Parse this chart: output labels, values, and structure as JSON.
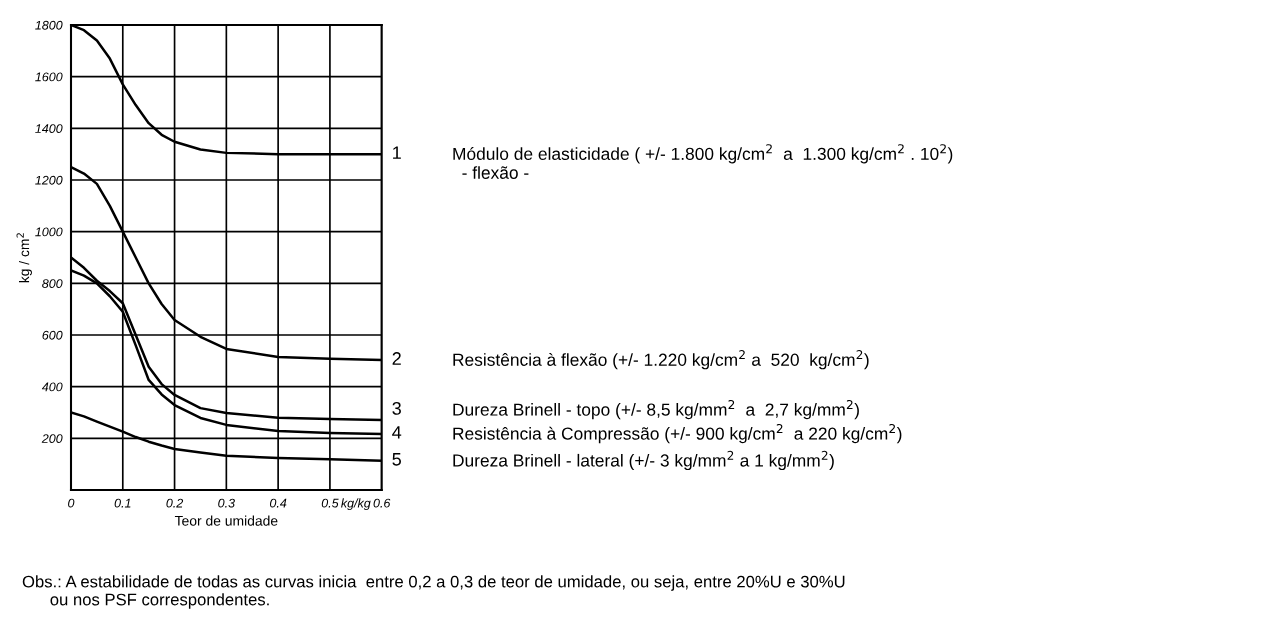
{
  "chart_data": {
    "type": "line",
    "xlabel": "Teor de umidade",
    "ylabel": "kg / cm$^{2}$",
    "x": [
      0,
      0.025,
      0.05,
      0.075,
      0.1,
      0.125,
      0.15,
      0.175,
      0.2,
      0.25,
      0.3,
      0.4,
      0.5,
      0.6
    ],
    "series": [
      {
        "name": "1",
        "color": "#000000",
        "values": [
          1800,
          1780,
          1740,
          1670,
          1570,
          1490,
          1420,
          1375,
          1348,
          1318,
          1305,
          1300,
          1300,
          1300
        ]
      },
      {
        "name": "2",
        "color": "#000000",
        "values": [
          1250,
          1225,
          1185,
          1100,
          1000,
          900,
          800,
          720,
          658,
          593,
          546,
          515,
          508,
          503
        ]
      },
      {
        "name": "3",
        "color": "#000000",
        "values": [
          900,
          860,
          810,
          770,
          723,
          600,
          477,
          410,
          368,
          317,
          298,
          280,
          275,
          271
        ]
      },
      {
        "name": "4",
        "color": "#000000",
        "values": [
          850,
          830,
          800,
          750,
          690,
          560,
          426,
          370,
          329,
          279,
          252,
          228,
          221,
          217
        ]
      },
      {
        "name": "5",
        "color": "#000000",
        "values": [
          300,
          285,
          265,
          245,
          226,
          205,
          187,
          172,
          159,
          145,
          133,
          124,
          119,
          113
        ]
      }
    ],
    "xlim": [
      0,
      0.6
    ],
    "ylim": [
      0,
      1800
    ],
    "xticks": [
      0,
      0.1,
      0.2,
      0.3,
      0.4,
      0.5,
      0.6
    ],
    "yticks": [
      {
        "value": 0,
        "label": null
      },
      200,
      400,
      600,
      800,
      1000,
      1200,
      1400,
      1600,
      1800
    ],
    "grid": true,
    "legend": false,
    "marker": "none",
    "line_style": "solid",
    "annotations": [
      "Módulo de elasticidade ( +/- 1.800 kg/cm$^{2}$  a  1.300 kg/cm$^{2}$ . 10$^{2}$)\n  - flexão -",
      "Resistência à flexão (+/- 1.220 kg/cm$^{2}$ a  520  kg/cm$^{2}$)",
      "Dureza Brinell - topo (+/- 8,5 kg/mm$^{2}$  a  2,7 kg/mm$^{2}$)",
      "Resistência à Compressão (+/- 900 kg/cm$^{2}$  a 220 kg/cm$^{2}$)",
      "Dureza Brinell - lateral (+/- 3 kg/mm$^{2}$ a 1 kg/mm$^{2}$)",
      "kg/kg",
      "Obs.: A estabilidade de todas as curvas inicia  entre 0,2 a 0,3 de teor de umidade, ou seja, entre 20%U e 30%U\n      ou nos PSF correspondentes."
    ]
  }
}
